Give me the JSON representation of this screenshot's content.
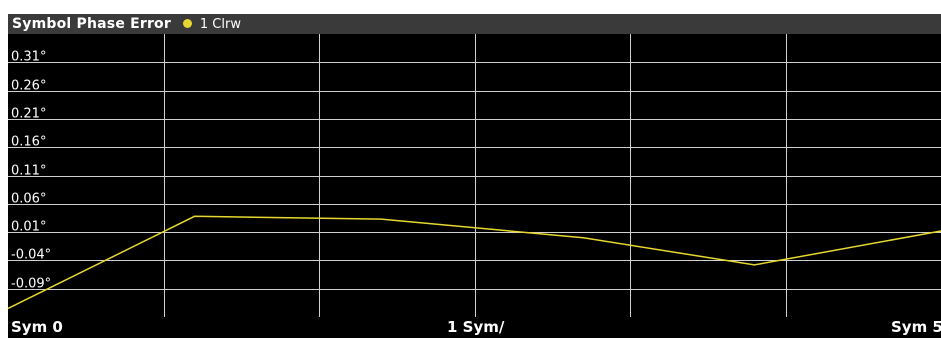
{
  "window": {
    "title": "Symbol Phase Error",
    "trace_label": "1 Clrw"
  },
  "colors": {
    "trace": "#e6d830",
    "background": "#000000",
    "grid": "#d0d0d0",
    "title_bar": "#3a3a3a",
    "text": "#ffffff"
  },
  "chart_data": {
    "type": "line",
    "title": "Symbol Phase Error",
    "ylabel": "",
    "xlabel": "1 Sym/",
    "x_start_label": "Sym 0",
    "x_end_label": "Sym 5",
    "xlim": [
      0,
      6
    ],
    "ylim": [
      -0.14,
      0.36
    ],
    "y_ticks": [
      0.31,
      0.26,
      0.21,
      0.16,
      0.11,
      0.06,
      0.01,
      -0.04,
      -0.09
    ],
    "y_tick_labels": [
      "0.31°",
      "0.26°",
      "0.21°",
      "0.16°",
      "0.11°",
      "0.06°",
      "0.01°",
      "-0.04°",
      "-0.09°"
    ],
    "grid": true,
    "legend": "none",
    "series": [
      {
        "name": "1 Clrw",
        "x": [
          0,
          1.2,
          2.4,
          3.7,
          4.8,
          6.0
        ],
        "y": [
          -0.125,
          0.038,
          0.033,
          0.0,
          -0.048,
          0.012
        ]
      }
    ]
  }
}
